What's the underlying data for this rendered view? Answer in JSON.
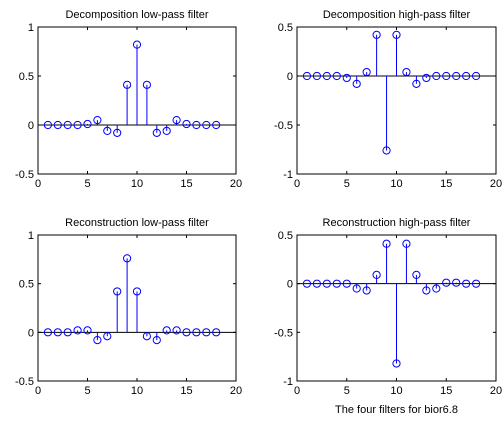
{
  "figure": {
    "caption": "The four filters for bior6.8"
  },
  "chart_data": [
    {
      "type": "stem",
      "title": "Decomposition low-pass filter",
      "xlim": [
        0,
        20
      ],
      "ylim": [
        -0.5,
        1
      ],
      "xticks": [
        0,
        5,
        10,
        15,
        20
      ],
      "yticks": [
        -0.5,
        0,
        0.5,
        1
      ],
      "ytick_labels": [
        "-0.5",
        "0",
        "0.5",
        "1"
      ],
      "color": "#0000ff",
      "x": [
        1,
        2,
        3,
        4,
        5,
        6,
        7,
        8,
        9,
        10,
        11,
        12,
        13,
        14,
        15,
        16,
        17,
        18
      ],
      "values": [
        0.0,
        0.0,
        0.0,
        0.0,
        0.01,
        0.05,
        -0.06,
        -0.08,
        0.41,
        0.82,
        0.41,
        -0.08,
        -0.06,
        0.05,
        0.01,
        0.0,
        0.0,
        0.0
      ]
    },
    {
      "type": "stem",
      "title": "Decomposition high-pass filter",
      "xlim": [
        0,
        20
      ],
      "ylim": [
        -1,
        0.5
      ],
      "xticks": [
        0,
        5,
        10,
        15,
        20
      ],
      "yticks": [
        -1,
        -0.5,
        0,
        0.5
      ],
      "ytick_labels": [
        "-1",
        "-0.5",
        "0",
        "0.5"
      ],
      "color": "#0000ff",
      "x": [
        1,
        2,
        3,
        4,
        5,
        6,
        7,
        8,
        9,
        10,
        11,
        12,
        13,
        14,
        15,
        16,
        17,
        18
      ],
      "values": [
        0.0,
        0.0,
        0.0,
        0.0,
        -0.02,
        -0.08,
        0.04,
        0.42,
        -0.76,
        0.42,
        0.04,
        -0.08,
        -0.02,
        0.0,
        0.0,
        0.0,
        0.0,
        0.0
      ]
    },
    {
      "type": "stem",
      "title": "Reconstruction low-pass filter",
      "xlim": [
        0,
        20
      ],
      "ylim": [
        -0.5,
        1
      ],
      "xticks": [
        0,
        5,
        10,
        15,
        20
      ],
      "yticks": [
        -0.5,
        0,
        0.5,
        1
      ],
      "ytick_labels": [
        "-0.5",
        "0",
        "0.5",
        "1"
      ],
      "color": "#0000ff",
      "x": [
        1,
        2,
        3,
        4,
        5,
        6,
        7,
        8,
        9,
        10,
        11,
        12,
        13,
        14,
        15,
        16,
        17,
        18
      ],
      "values": [
        0.0,
        0.0,
        0.0,
        0.02,
        0.02,
        -0.08,
        -0.04,
        0.42,
        0.76,
        0.42,
        -0.04,
        -0.08,
        0.02,
        0.02,
        0.0,
        0.0,
        0.0,
        0.0
      ]
    },
    {
      "type": "stem",
      "title": "Reconstruction high-pass filter",
      "xlim": [
        0,
        20
      ],
      "ylim": [
        -1,
        0.5
      ],
      "xticks": [
        0,
        5,
        10,
        15,
        20
      ],
      "yticks": [
        -1,
        -0.5,
        0,
        0.5
      ],
      "ytick_labels": [
        "-1",
        "-0.5",
        "0",
        "0.5"
      ],
      "color": "#0000ff",
      "x": [
        1,
        2,
        3,
        4,
        5,
        6,
        7,
        8,
        9,
        10,
        11,
        12,
        13,
        14,
        15,
        16,
        17,
        18
      ],
      "values": [
        0.0,
        0.0,
        0.0,
        0.0,
        0.0,
        -0.05,
        -0.07,
        0.09,
        0.41,
        -0.82,
        0.41,
        0.09,
        -0.07,
        -0.05,
        0.01,
        0.01,
        0.0,
        0.0
      ]
    }
  ]
}
